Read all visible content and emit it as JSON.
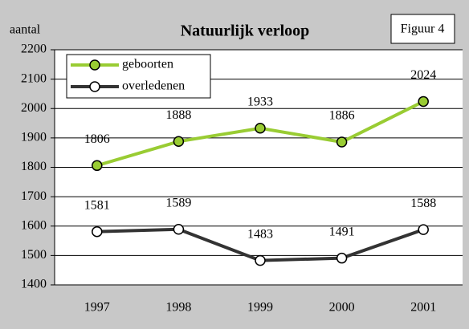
{
  "chart_data": {
    "type": "line",
    "title": "Natuurlijk verloop",
    "figure_label": "Figuur 4",
    "y_label": "aantal",
    "categories": [
      "1997",
      "1998",
      "1999",
      "2000",
      "2001"
    ],
    "series": [
      {
        "name": "geboorten",
        "color": "#99cc33",
        "values": [
          1806,
          1888,
          1933,
          1886,
          2024
        ]
      },
      {
        "name": "overledenen",
        "color": "#333333",
        "values": [
          1581,
          1589,
          1483,
          1491,
          1588
        ]
      }
    ],
    "ylim": [
      1400,
      2200
    ],
    "yticks": [
      1400,
      1500,
      1600,
      1700,
      1800,
      1900,
      2000,
      2100,
      2200
    ],
    "grid": true
  }
}
